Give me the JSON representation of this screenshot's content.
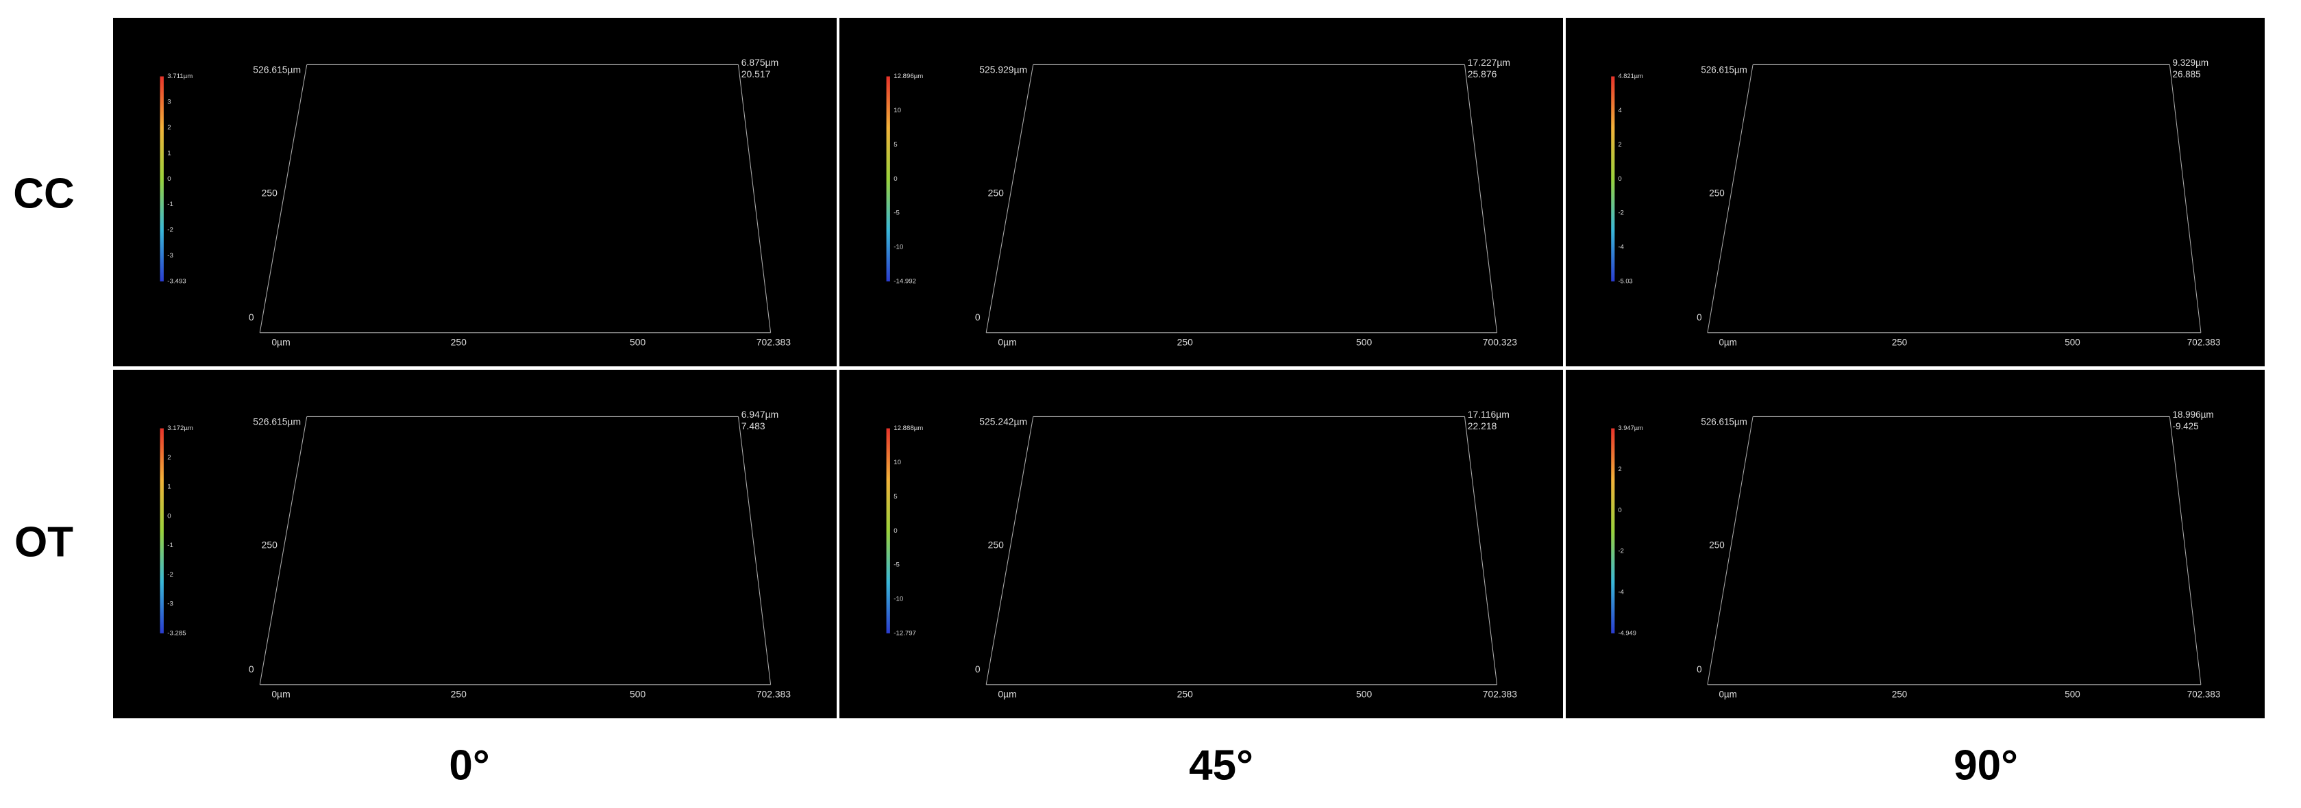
{
  "row_labels": [
    "CC",
    "OT"
  ],
  "column_labels": [
    "0°",
    "45°",
    "90°"
  ],
  "panels": [
    {
      "colorbar": [
        "3.711µm",
        "3",
        "2",
        "1",
        "0",
        "-1",
        "-2",
        "-3",
        "-3.493"
      ],
      "y_axis": [
        "526.615µm",
        "250",
        "0"
      ],
      "x_axis": [
        "0µm",
        "250",
        "500",
        "702.383"
      ],
      "z_axis": [
        "6.875µm",
        "20.517"
      ]
    },
    {
      "colorbar": [
        "12.896µm",
        "10",
        "5",
        "0",
        "-5",
        "-10",
        "-14.992"
      ],
      "y_axis": [
        "525.929µm",
        "250",
        "0"
      ],
      "x_axis": [
        "0µm",
        "250",
        "500",
        "700.323"
      ],
      "z_axis": [
        "17.227µm",
        "25.876"
      ]
    },
    {
      "colorbar": [
        "4.821µm",
        "4",
        "2",
        "0",
        "-2",
        "-4",
        "-5.03"
      ],
      "y_axis": [
        "526.615µm",
        "250",
        "0"
      ],
      "x_axis": [
        "0µm",
        "250",
        "500",
        "702.383"
      ],
      "z_axis": [
        "9.329µm",
        "26.885"
      ]
    },
    {
      "colorbar": [
        "3.172µm",
        "2",
        "1",
        "0",
        "-1",
        "-2",
        "-3",
        "-3.285"
      ],
      "y_axis": [
        "526.615µm",
        "250",
        "0"
      ],
      "x_axis": [
        "0µm",
        "250",
        "500",
        "702.383"
      ],
      "z_axis": [
        "6.947µm",
        "7.483"
      ]
    },
    {
      "colorbar": [
        "12.888µm",
        "10",
        "5",
        "0",
        "-5",
        "-10",
        "-12.797"
      ],
      "y_axis": [
        "525.242µm",
        "250",
        "0"
      ],
      "x_axis": [
        "0µm",
        "250",
        "500",
        "702.383"
      ],
      "z_axis": [
        "17.116µm",
        "22.218"
      ]
    },
    {
      "colorbar": [
        "3.947µm",
        "2",
        "0",
        "-2",
        "-4",
        "-4.949"
      ],
      "y_axis": [
        "526.615µm",
        "250",
        "0"
      ],
      "x_axis": [
        "0µm",
        "250",
        "500",
        "702.383"
      ],
      "z_axis": [
        "18.996µm",
        "-9.425"
      ]
    }
  ]
}
